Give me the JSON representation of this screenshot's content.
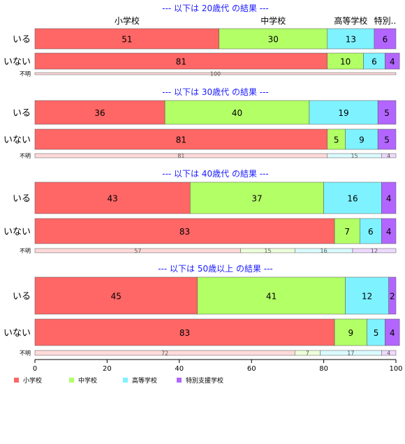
{
  "chart_data": {
    "type": "bar",
    "orientation": "horizontal",
    "stacked": "percent",
    "xlim": [
      0,
      100
    ],
    "x_ticks": [
      0,
      20,
      40,
      60,
      80,
      100
    ],
    "grid": false,
    "legend_position": "bottom-left",
    "categories_top": [
      "小学校",
      "中学校",
      "高等学校",
      "特別.."
    ],
    "legend": [
      {
        "name": "小学校",
        "color": "#ff6666"
      },
      {
        "name": "中学校",
        "color": "#b2ff66"
      },
      {
        "name": "高等学校",
        "color": "#7ff2ff"
      },
      {
        "name": "特別支援学校",
        "color": "#b266ff"
      }
    ],
    "panels": [
      {
        "title": "--- 以下は 20歳代 の結果 ---",
        "rows": [
          {
            "label": "いる",
            "values": [
              51,
              30,
              13,
              6
            ]
          },
          {
            "label": "いない",
            "values": [
              81,
              10,
              6,
              4
            ]
          },
          {
            "label": "不明",
            "values": [
              100,
              0,
              0,
              0
            ]
          }
        ]
      },
      {
        "title": "--- 以下は 30歳代 の結果 ---",
        "rows": [
          {
            "label": "いる",
            "values": [
              36,
              40,
              19,
              5
            ]
          },
          {
            "label": "いない",
            "values": [
              81,
              5,
              9,
              5
            ]
          },
          {
            "label": "不明",
            "values": [
              81,
              0,
              15,
              4
            ]
          }
        ]
      },
      {
        "title": "--- 以下は 40歳代 の結果 ---",
        "rows": [
          {
            "label": "いる",
            "values": [
              43,
              37,
              16,
              4
            ]
          },
          {
            "label": "いない",
            "values": [
              83,
              7,
              6,
              4
            ]
          },
          {
            "label": "不明",
            "values": [
              57,
              15,
              16,
              12
            ]
          }
        ]
      },
      {
        "title": "--- 以下は 50歳以上 の結果 ---",
        "rows": [
          {
            "label": "いる",
            "values": [
              45,
              41,
              12,
              2
            ]
          },
          {
            "label": "いない",
            "values": [
              83,
              9,
              5,
              4
            ]
          },
          {
            "label": "不明",
            "values": [
              72,
              7,
              17,
              4
            ]
          }
        ]
      }
    ]
  }
}
